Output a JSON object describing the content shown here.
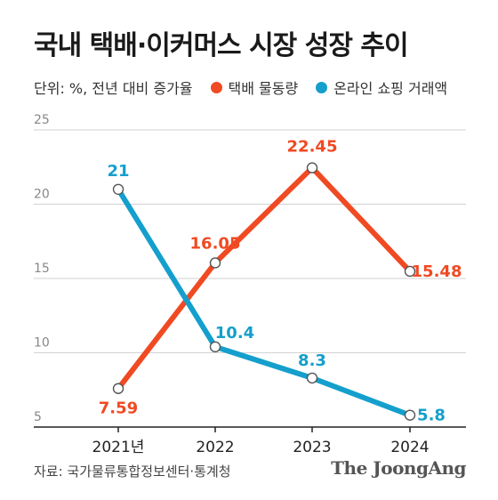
{
  "chart_data": {
    "type": "line",
    "title": "국내 택배·이커머스 시장 성장 추이",
    "unit_note": "단위: %, 전년 대비 증가율",
    "categories": [
      "2021년",
      "2022",
      "2023",
      "2024"
    ],
    "series": [
      {
        "name": "택배 물동량",
        "color": "#f04a23",
        "values": [
          7.59,
          16.05,
          22.45,
          15.48
        ],
        "labels": [
          "7.59",
          "16.05",
          "22.45",
          "15.48"
        ]
      },
      {
        "name": "온라인 쇼핑 거래액",
        "color": "#159fcc",
        "values": [
          21,
          10.4,
          8.3,
          5.8
        ],
        "labels": [
          "21",
          "10.4",
          "8.3",
          "5.8"
        ]
      }
    ],
    "yticks": [
      "25",
      "20",
      "15",
      "10",
      "5"
    ],
    "ytick_values": [
      25,
      20,
      15,
      10,
      5
    ],
    "ylim": [
      5,
      25
    ],
    "grid": true,
    "legend": "top"
  },
  "source": "자료: 국가물류통합정보센터·통계청",
  "logo": "The JoongAng"
}
